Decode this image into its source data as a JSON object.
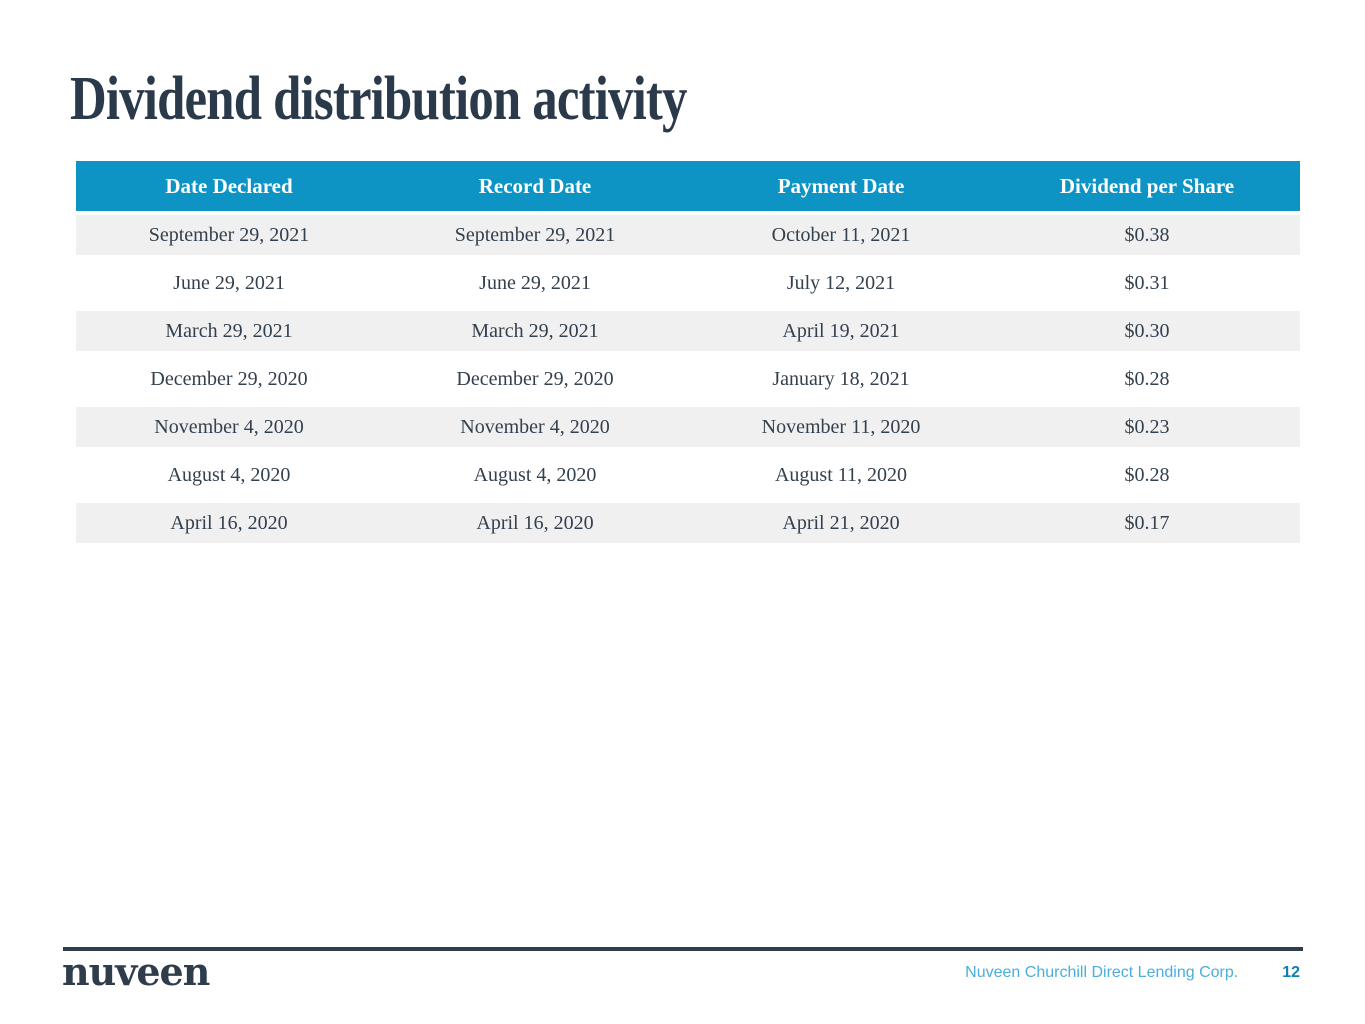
{
  "slide": {
    "title": "Dividend distribution activity",
    "table": {
      "columns": [
        "Date Declared",
        "Record Date",
        "Payment Date",
        "Dividend per Share"
      ],
      "rows": [
        [
          "September 29, 2021",
          "September 29, 2021",
          "October 11, 2021",
          "$0.38"
        ],
        [
          "June 29, 2021",
          "June 29, 2021",
          "July 12, 2021",
          "$0.31"
        ],
        [
          "March 29, 2021",
          "March 29, 2021",
          "April 19, 2021",
          "$0.30"
        ],
        [
          "December 29, 2020",
          "December 29, 2020",
          "January 18, 2021",
          "$0.28"
        ],
        [
          "November 4, 2020",
          "November 4, 2020",
          "November 11, 2020",
          "$0.23"
        ],
        [
          "August 4, 2020",
          "August 4, 2020",
          "August 11, 2020",
          "$0.28"
        ],
        [
          "April 16, 2020",
          "April 16, 2020",
          "April 21, 2020",
          "$0.17"
        ]
      ]
    },
    "footer": {
      "logo": "nuveen",
      "company": "Nuveen Churchill Direct Lending Corp.",
      "page_number": "12"
    },
    "colors": {
      "header_bg": "#0d94c4",
      "row_alt_bg": "#f0f0f1",
      "title_text": "#2b3a4a",
      "body_text": "#33404e",
      "footer_company_text": "#4baedc",
      "page_number_text": "#0e7faf",
      "footer_rule": "#2e3c4b"
    }
  }
}
